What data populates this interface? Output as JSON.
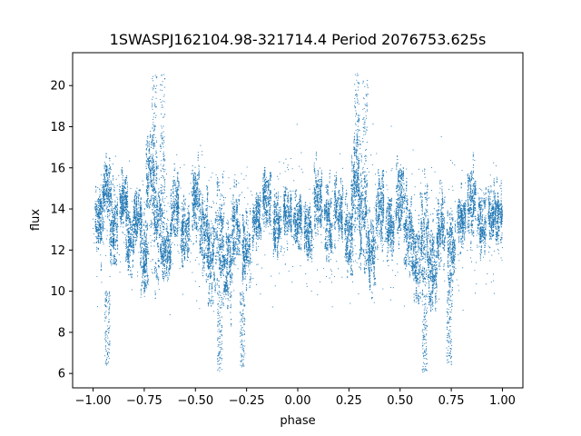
{
  "chart_data": {
    "type": "scatter",
    "title": "1SWASPJ162104.98-321714.4 Period 2076753.625s",
    "xlabel": "phase",
    "ylabel": "flux",
    "xlim": [
      -1.1,
      1.1
    ],
    "ylim": [
      5.3,
      21.6
    ],
    "x_ticks": [
      -1.0,
      -0.75,
      -0.5,
      -0.25,
      0.0,
      0.25,
      0.5,
      0.75,
      1.0
    ],
    "x_tick_labels": [
      "−1.00",
      "−0.75",
      "−0.50",
      "−0.25",
      "0.00",
      "0.25",
      "0.50",
      "0.75",
      "1.00"
    ],
    "y_ticks": [
      6,
      8,
      10,
      12,
      14,
      16,
      18,
      20
    ],
    "y_tick_labels": [
      "6",
      "8",
      "10",
      "12",
      "14",
      "16",
      "18",
      "20"
    ],
    "grid": false,
    "legend": "none",
    "marker_color": "#1f77b4",
    "series": [
      {
        "clusters": [
          {
            "x": -0.97,
            "y": 13.5,
            "spread": 1.2
          },
          {
            "x": -0.93,
            "y": 15.0,
            "spread": 1.0
          },
          {
            "x": -0.9,
            "y": 13.0,
            "spread": 1.6
          },
          {
            "x": -0.85,
            "y": 14.5,
            "spread": 1.0
          },
          {
            "x": -0.82,
            "y": 12.5,
            "spread": 1.4
          },
          {
            "x": -0.78,
            "y": 13.8,
            "spread": 1.0
          },
          {
            "x": -0.75,
            "y": 11.5,
            "spread": 1.5
          },
          {
            "x": -0.72,
            "y": 15.5,
            "spread": 1.8
          },
          {
            "x": -0.68,
            "y": 13.5,
            "spread": 2.5
          },
          {
            "x": -0.64,
            "y": 12.0,
            "spread": 1.2
          },
          {
            "x": -0.6,
            "y": 14.0,
            "spread": 1.4
          },
          {
            "x": -0.55,
            "y": 13.0,
            "spread": 1.2
          },
          {
            "x": -0.5,
            "y": 14.5,
            "spread": 1.5
          },
          {
            "x": -0.46,
            "y": 13.0,
            "spread": 1.8
          },
          {
            "x": -0.42,
            "y": 11.5,
            "spread": 1.5
          },
          {
            "x": -0.38,
            "y": 12.5,
            "spread": 2.0
          },
          {
            "x": -0.34,
            "y": 11.0,
            "spread": 1.6
          },
          {
            "x": -0.3,
            "y": 13.0,
            "spread": 1.5
          },
          {
            "x": -0.25,
            "y": 12.0,
            "spread": 1.4
          },
          {
            "x": -0.2,
            "y": 13.5,
            "spread": 1.0
          },
          {
            "x": -0.15,
            "y": 14.5,
            "spread": 1.2
          },
          {
            "x": -0.1,
            "y": 13.2,
            "spread": 1.2
          },
          {
            "x": -0.05,
            "y": 13.8,
            "spread": 1.0
          },
          {
            "x": 0.0,
            "y": 13.5,
            "spread": 1.2
          },
          {
            "x": 0.05,
            "y": 13.0,
            "spread": 1.0
          },
          {
            "x": 0.1,
            "y": 14.5,
            "spread": 1.2
          },
          {
            "x": 0.15,
            "y": 13.2,
            "spread": 1.4
          },
          {
            "x": 0.2,
            "y": 14.0,
            "spread": 1.2
          },
          {
            "x": 0.25,
            "y": 12.5,
            "spread": 1.5
          },
          {
            "x": 0.28,
            "y": 15.5,
            "spread": 1.8
          },
          {
            "x": 0.32,
            "y": 13.5,
            "spread": 2.4
          },
          {
            "x": 0.36,
            "y": 12.0,
            "spread": 1.4
          },
          {
            "x": 0.4,
            "y": 14.0,
            "spread": 1.4
          },
          {
            "x": 0.45,
            "y": 13.0,
            "spread": 1.2
          },
          {
            "x": 0.5,
            "y": 14.5,
            "spread": 1.5
          },
          {
            "x": 0.54,
            "y": 13.0,
            "spread": 1.8
          },
          {
            "x": 0.58,
            "y": 11.5,
            "spread": 1.5
          },
          {
            "x": 0.62,
            "y": 12.5,
            "spread": 2.0
          },
          {
            "x": 0.66,
            "y": 11.0,
            "spread": 1.6
          },
          {
            "x": 0.7,
            "y": 13.0,
            "spread": 1.5
          },
          {
            "x": 0.75,
            "y": 12.0,
            "spread": 1.4
          },
          {
            "x": 0.8,
            "y": 13.5,
            "spread": 1.0
          },
          {
            "x": 0.85,
            "y": 14.5,
            "spread": 1.2
          },
          {
            "x": 0.9,
            "y": 13.2,
            "spread": 1.2
          },
          {
            "x": 0.95,
            "y": 13.8,
            "spread": 1.0
          },
          {
            "x": 0.99,
            "y": 13.5,
            "spread": 1.2
          }
        ],
        "spikes": [
          {
            "x": -0.7,
            "y_min": 13.0,
            "y_max": 20.5
          },
          {
            "x": -0.66,
            "y_min": 13.0,
            "y_max": 20.6
          },
          {
            "x": 0.29,
            "y_min": 13.0,
            "y_max": 20.6
          },
          {
            "x": 0.33,
            "y_min": 13.0,
            "y_max": 20.3
          },
          {
            "x": -0.93,
            "y_min": 6.4,
            "y_max": 10.0
          },
          {
            "x": -0.38,
            "y_min": 6.1,
            "y_max": 10.0
          },
          {
            "x": -0.27,
            "y_min": 6.3,
            "y_max": 10.0
          },
          {
            "x": 0.62,
            "y_min": 6.0,
            "y_max": 10.0
          },
          {
            "x": 0.74,
            "y_min": 6.3,
            "y_max": 10.0
          }
        ]
      }
    ]
  }
}
